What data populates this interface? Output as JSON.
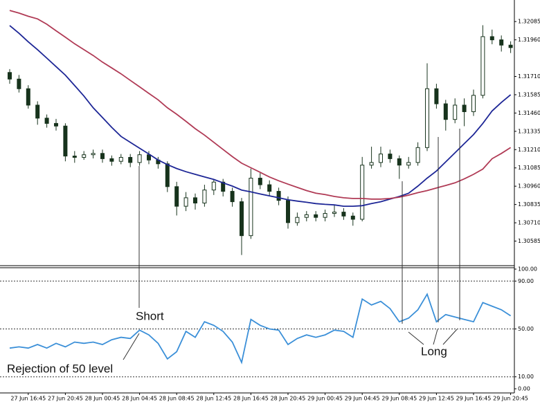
{
  "chart_data": [
    {
      "type": "candlestick",
      "categories": [
        null,
        null,
        "27 Jun 16:45",
        null,
        null,
        null,
        "27 Jun 20:45",
        null,
        null,
        null,
        "28 Jun 00:45",
        null,
        null,
        null,
        "28 Jun 04:45",
        null,
        null,
        null,
        "28 Jun 08:45",
        null,
        null,
        null,
        "28 Jun 12:45",
        null,
        null,
        null,
        "28 Jun 16:45",
        null,
        null,
        null,
        "28 Jun 20:45",
        null,
        null,
        null,
        "29 Jun 00:45",
        null,
        null,
        null,
        "29 Jun 04:45",
        null,
        null,
        null,
        "29 Jun 08:45",
        null,
        null,
        null,
        "29 Jun 12:45",
        null,
        null,
        null,
        "29 Jun 16:45",
        null,
        null,
        null,
        "29 Jun 20:45"
      ],
      "open": [
        1.31737,
        1.31692,
        1.31626,
        1.31514,
        1.31425,
        1.31389,
        1.31371,
        1.31166,
        1.31157,
        1.31175,
        1.31184,
        1.31148,
        1.3113,
        1.31157,
        1.31122,
        1.31175,
        1.31139,
        1.31113,
        1.30957,
        1.30823,
        1.30881,
        1.30845,
        1.30934,
        1.30988,
        1.30925,
        1.30854,
        1.30622,
        1.31015,
        1.3097,
        1.30925,
        1.30863,
        1.30711,
        1.30747,
        1.30765,
        1.30747,
        1.30774,
        1.30783,
        1.30756,
        1.30734,
        1.31104,
        1.31122,
        1.3118,
        1.31148,
        1.31104,
        1.31122,
        1.31224,
        1.31626,
        1.31523,
        1.31416,
        1.31514,
        1.31469,
        1.31581,
        1.31982,
        1.3196,
        1.31924
      ],
      "high": [
        1.3176,
        1.3172,
        1.3165,
        1.3154,
        1.3145,
        1.3142,
        1.3139,
        1.312,
        1.312,
        1.3121,
        1.3121,
        1.3117,
        1.3118,
        1.3118,
        1.312,
        1.312,
        1.3116,
        1.3113,
        1.3099,
        1.3092,
        1.3091,
        1.3097,
        1.3101,
        1.3101,
        1.3095,
        1.3088,
        1.3108,
        1.3105,
        1.31,
        1.3095,
        1.3089,
        1.3078,
        1.3079,
        1.3079,
        1.308,
        1.3083,
        1.3081,
        1.3078,
        1.3116,
        1.3123,
        1.3123,
        1.3121,
        1.3117,
        1.3116,
        1.3126,
        1.318,
        1.3166,
        1.3155,
        1.3156,
        1.3156,
        1.3162,
        1.3206,
        1.3203,
        1.3199,
        1.3195
      ],
      "low": [
        1.3166,
        1.316,
        1.3149,
        1.3138,
        1.3136,
        1.3134,
        1.3113,
        1.3112,
        1.3114,
        1.3115,
        1.3112,
        1.311,
        1.3111,
        1.3109,
        1.311,
        1.3111,
        1.3108,
        1.3092,
        1.3076,
        1.3079,
        1.308,
        1.3082,
        1.309,
        1.3089,
        1.3082,
        1.3049,
        1.306,
        1.3094,
        1.3089,
        1.3083,
        1.3067,
        1.3069,
        1.3072,
        1.3072,
        1.3072,
        1.3075,
        1.3073,
        1.3069,
        1.3072,
        1.3108,
        1.3109,
        1.3112,
        1.3101,
        1.3108,
        1.311,
        1.312,
        1.3149,
        1.3134,
        1.3139,
        1.3137,
        1.3144,
        1.3156,
        1.3193,
        1.3188,
        1.3187
      ],
      "close": [
        1.31692,
        1.31626,
        1.31514,
        1.31425,
        1.31389,
        1.31371,
        1.31166,
        1.31157,
        1.31175,
        1.31184,
        1.31148,
        1.3113,
        1.31157,
        1.31122,
        1.31175,
        1.31139,
        1.31113,
        1.30957,
        1.30823,
        1.30881,
        1.30845,
        1.30934,
        1.30988,
        1.30925,
        1.30854,
        1.30622,
        1.31015,
        1.3097,
        1.30925,
        1.30863,
        1.30711,
        1.30747,
        1.30765,
        1.30747,
        1.30774,
        1.30783,
        1.30756,
        1.30734,
        1.31104,
        1.31122,
        1.3118,
        1.31148,
        1.31104,
        1.31122,
        1.31224,
        1.31626,
        1.31523,
        1.31416,
        1.31514,
        1.31469,
        1.31581,
        1.31982,
        1.3196,
        1.31924,
        1.31907
      ],
      "up_color": "#ffffff",
      "down_color": "#17331c",
      "wick_color": "#17331c",
      "series": [
        {
          "color": "#1d2696",
          "values": [
            1.32058,
            1.32005,
            1.31947,
            1.31893,
            1.31835,
            1.31777,
            1.31719,
            1.31648,
            1.31576,
            1.31496,
            1.31429,
            1.31362,
            1.313,
            1.3126,
            1.3122,
            1.3118,
            1.31139,
            1.31108,
            1.31081,
            1.31059,
            1.31041,
            1.31023,
            1.31006,
            1.30983,
            1.30961,
            1.30934,
            1.30921,
            1.30907,
            1.30894,
            1.30881,
            1.30867,
            1.30858,
            1.3085,
            1.30841,
            1.30836,
            1.30832,
            1.30823,
            1.30823,
            1.30827,
            1.30841,
            1.30854,
            1.30872,
            1.3089,
            1.30912,
            1.30961,
            1.31015,
            1.31064,
            1.31126,
            1.31188,
            1.31251,
            1.31313,
            1.31389,
            1.31474,
            1.31532,
            1.31585
          ]
        },
        {
          "color": "#b03a55",
          "values": [
            1.32161,
            1.32143,
            1.32121,
            1.32103,
            1.32067,
            1.32022,
            1.31978,
            1.31933,
            1.31893,
            1.31853,
            1.31808,
            1.31768,
            1.31728,
            1.31683,
            1.31639,
            1.31594,
            1.3155,
            1.31496,
            1.31452,
            1.31403,
            1.31353,
            1.31309,
            1.3126,
            1.31211,
            1.31162,
            1.31117,
            1.31086,
            1.31055,
            1.31023,
            1.30997,
            1.30974,
            1.30952,
            1.3093,
            1.30912,
            1.30903,
            1.3089,
            1.30881,
            1.30876,
            1.30876,
            1.30872,
            1.30872,
            1.30876,
            1.30885,
            1.30899,
            1.30916,
            1.3093,
            1.30948,
            1.30965,
            1.30983,
            1.3101,
            1.31041,
            1.31077,
            1.31148,
            1.31184,
            1.31224
          ]
        }
      ],
      "ylim": [
        1.30455,
        1.32185
      ],
      "yticks": [
        1.32085,
        {
          "value": 1.3196,
          "label": "1.31960"
        },
        {
          "value": 1.3171,
          "label": "1.31710"
        },
        1.31585,
        {
          "value": 1.3146,
          "label": "1.31460"
        },
        1.31335,
        {
          "value": 1.3121,
          "label": "1.31210"
        },
        1.31085,
        {
          "value": 1.3096,
          "label": "1.30960"
        },
        1.30835,
        {
          "value": 1.3071,
          "label": "1.30710"
        },
        1.30585
      ]
    },
    {
      "type": "line",
      "series": [
        {
          "color": "#3a8fd8",
          "values": [
            34,
            35,
            34,
            37,
            34,
            38,
            35,
            39,
            38,
            39,
            37,
            41,
            43,
            42,
            49,
            45,
            38,
            25,
            31,
            48,
            43,
            56,
            53,
            48,
            39,
            22,
            58,
            53,
            50,
            49,
            37,
            42,
            45,
            43,
            45,
            49,
            48,
            43,
            75,
            70,
            73,
            67,
            56,
            59,
            66,
            79,
            56,
            62,
            60,
            58,
            56,
            72,
            69,
            66,
            61
          ]
        }
      ],
      "ylim": [
        0,
        100
      ],
      "yticks": [
        {
          "value": 100,
          "label": "100.00"
        },
        {
          "value": 90,
          "label": "90.00"
        },
        {
          "value": 50,
          "label": "50.00"
        },
        {
          "value": 10,
          "label": "10.00"
        },
        {
          "value": 0,
          "label": "0.00"
        }
      ],
      "levels": [
        90,
        50,
        10
      ],
      "annotations": [
        "Short",
        "Rejection of 50 level",
        "Long"
      ]
    }
  ]
}
